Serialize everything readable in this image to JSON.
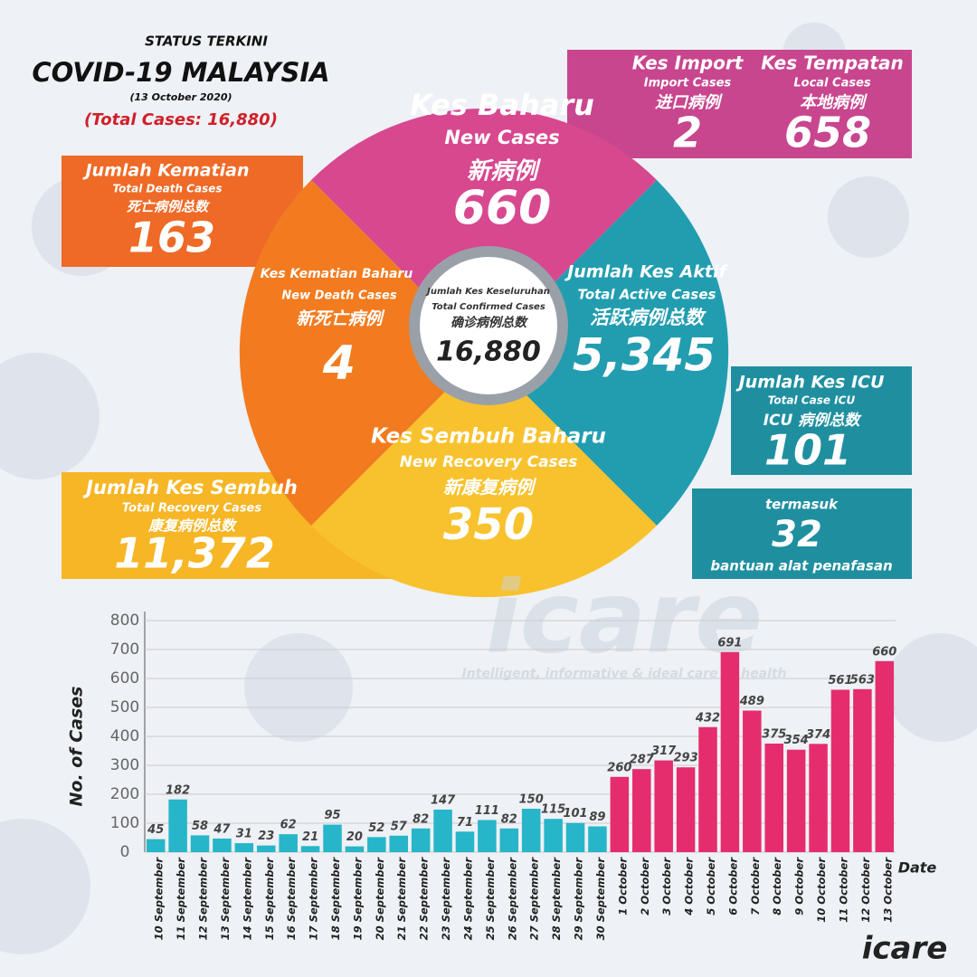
{
  "header": {
    "status": "STATUS TERKINI",
    "title": "COVID-19 MALAYSIA",
    "date": "(13 October 2020)",
    "total": "(Total Cases: 16,880)"
  },
  "new_cases": {
    "malay": "Kes Baharu",
    "english": "New Cases",
    "chinese": "新病例",
    "value": "660"
  },
  "import_cases": {
    "malay": "Kes Import",
    "english": "Import Cases",
    "chinese": "进口病例",
    "value": "2"
  },
  "local_cases": {
    "malay": "Kes Tempatan",
    "english": "Local Cases",
    "chinese": "本地病例",
    "value": "658"
  },
  "total_deaths": {
    "malay": "Jumlah Kematian",
    "english": "Total Death Cases",
    "chinese": "死亡病例总数",
    "value": "163"
  },
  "new_deaths": {
    "malay": "Kes Kematian Baharu",
    "english": "New Death Cases",
    "chinese": "新死亡病例",
    "value": "4"
  },
  "total_confirmed": {
    "malay": "Jumlah Kes Keseluruhan",
    "english": "Total Confirmed Cases",
    "chinese": "确诊病例总数",
    "value": "16,880"
  },
  "active_cases": {
    "malay": "Jumlah Kes Aktif",
    "english": "Total Active Cases",
    "chinese": "活跃病例总数",
    "value": "5,345"
  },
  "icu_cases": {
    "malay": "Jumlah Kes ICU",
    "english": "Total Case ICU",
    "chinese": "ICU 病例总数",
    "value": "101"
  },
  "ventilator": {
    "prefix": "termasuk",
    "value": "32",
    "suffix": "bantuan alat penafasan"
  },
  "new_recovery": {
    "malay": "Kes Sembuh Baharu",
    "english": "New Recovery Cases",
    "chinese": "新康复病例",
    "value": "350"
  },
  "total_recovery": {
    "malay": "Jumlah Kes Sembuh",
    "english": "Total Recovery Cases",
    "chinese": "康复病例总数",
    "value": "11,372"
  },
  "watermark": {
    "logo": "icare",
    "tagline": "Intelligent, informative & ideal care of health"
  },
  "footer_logo": "icare",
  "chart_data": {
    "type": "bar",
    "y_label": "No. of Cases",
    "x_label": "Date",
    "categories": [
      "10 September",
      "11 September",
      "12 September",
      "13 September",
      "14 September",
      "15 September",
      "16 September",
      "17 September",
      "18 September",
      "19 September",
      "20 September",
      "21 September",
      "22 September",
      "23 September",
      "24 September",
      "25 September",
      "26 September",
      "27 September",
      "28 September",
      "29 September",
      "30 September",
      "1 October",
      "2 October",
      "3 October",
      "4 October",
      "5 October",
      "6 October",
      "7 October",
      "8 October",
      "9 October",
      "10 October",
      "11 October",
      "12 October",
      "13 October"
    ],
    "values": [
      45,
      182,
      58,
      47,
      31,
      23,
      62,
      21,
      95,
      20,
      52,
      57,
      82,
      147,
      71,
      111,
      82,
      150,
      115,
      101,
      89,
      260,
      287,
      317,
      293,
      432,
      691,
      489,
      375,
      354,
      374,
      561,
      563,
      660
    ],
    "colors": [
      "#27b5c9",
      "#27b5c9",
      "#27b5c9",
      "#27b5c9",
      "#27b5c9",
      "#27b5c9",
      "#27b5c9",
      "#27b5c9",
      "#27b5c9",
      "#27b5c9",
      "#27b5c9",
      "#27b5c9",
      "#27b5c9",
      "#27b5c9",
      "#27b5c9",
      "#27b5c9",
      "#27b5c9",
      "#27b5c9",
      "#27b5c9",
      "#27b5c9",
      "#27b5c9",
      "#e52d6e",
      "#e52d6e",
      "#e52d6e",
      "#e52d6e",
      "#e52d6e",
      "#e52d6e",
      "#e52d6e",
      "#e52d6e",
      "#e52d6e",
      "#e52d6e",
      "#e52d6e",
      "#e52d6e",
      "#e52d6e"
    ],
    "ylim": [
      0,
      800
    ],
    "yticks": [
      0,
      100,
      200,
      300,
      400,
      500,
      600,
      700,
      800
    ],
    "grid": true
  }
}
